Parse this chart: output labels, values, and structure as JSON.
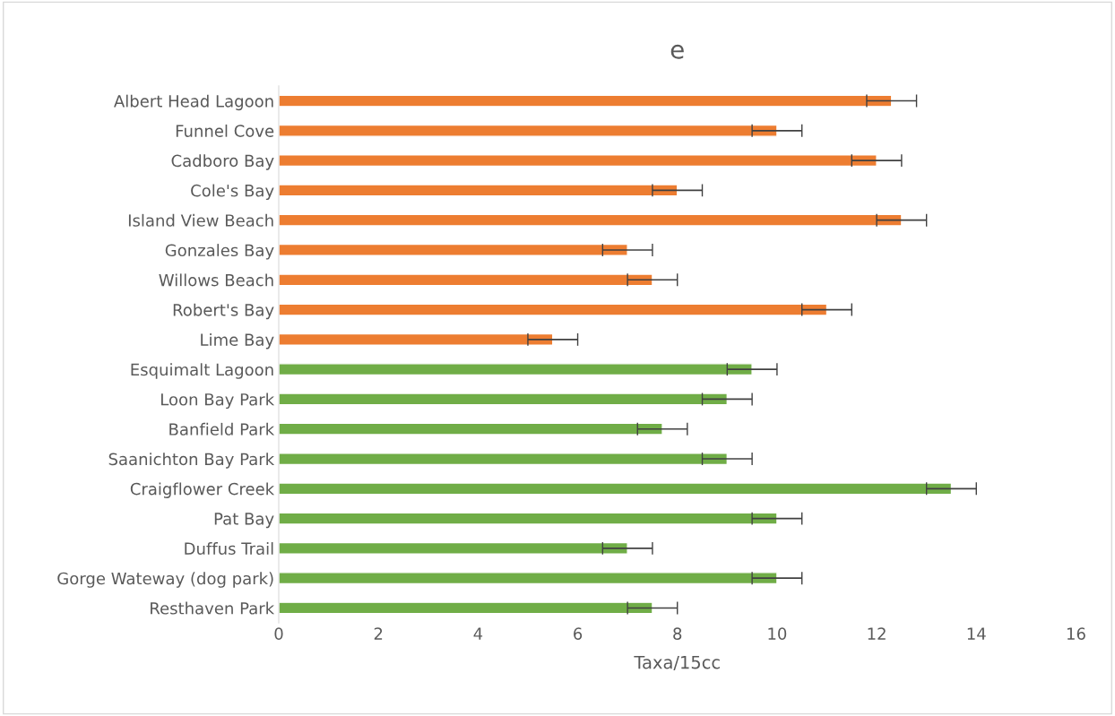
{
  "chart_data": {
    "type": "bar",
    "title": "e",
    "orientation": "horizontal",
    "xlabel": "Taxa/15cc",
    "categories": [
      "Albert Head Lagoon",
      "Funnel Cove",
      "Cadboro Bay",
      "Cole's Bay",
      "Island View Beach",
      "Gonzales Bay",
      "Willows Beach",
      "Robert's Bay",
      "Lime Bay",
      "Esquimalt Lagoon",
      "Loon Bay Park",
      "Banfield Park",
      "Saanichton Bay Park",
      "Craigflower Creek",
      "Pat Bay",
      "Duffus Trail",
      "Gorge Wateway (dog park)",
      "Resthaven Park"
    ],
    "values": [
      12.3,
      10,
      12,
      8,
      12.5,
      7,
      7.5,
      11,
      5.5,
      9.5,
      9,
      7.7,
      9,
      13.5,
      10,
      7,
      10,
      7.5
    ],
    "errors": [
      0.5,
      0.5,
      0.5,
      0.5,
      0.5,
      0.5,
      0.5,
      0.5,
      0.5,
      0.5,
      0.5,
      0.5,
      0.5,
      0.5,
      0.5,
      0.5,
      0.5,
      0.5
    ],
    "colors": [
      "#ed7d31",
      "#ed7d31",
      "#ed7d31",
      "#ed7d31",
      "#ed7d31",
      "#ed7d31",
      "#ed7d31",
      "#ed7d31",
      "#ed7d31",
      "#70ad47",
      "#70ad47",
      "#70ad47",
      "#70ad47",
      "#70ad47",
      "#70ad47",
      "#70ad47",
      "#70ad47",
      "#70ad47"
    ],
    "xlim": [
      0,
      16
    ],
    "xticks": [
      0,
      2,
      4,
      6,
      8,
      10,
      12,
      14,
      16
    ],
    "grid": false,
    "legend": false
  }
}
